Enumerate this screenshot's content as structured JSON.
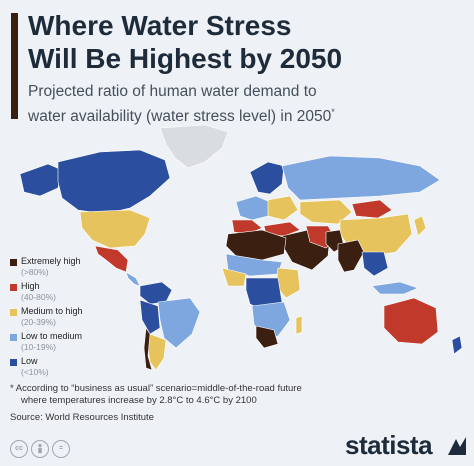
{
  "title_line1": "Where Water Stress",
  "title_line2": "Will Be Highest by 2050",
  "subtitle_line1": "Projected ratio of human water demand to",
  "subtitle_line2": "water availability (water stress level) in 2050",
  "subtitle_marker": "*",
  "legend": [
    {
      "label": "Extremely high",
      "range": "(>80%)",
      "color": "#3b1f10"
    },
    {
      "label": "High",
      "range": "(40-80%)",
      "color": "#c0392b"
    },
    {
      "label": "Medium to high",
      "range": "(20-39%)",
      "color": "#e6c35c"
    },
    {
      "label": "Low to medium",
      "range": "(10-19%)",
      "color": "#7fa7df"
    },
    {
      "label": "Low",
      "range": "(<10%)",
      "color": "#2b4f9e"
    }
  ],
  "footnote_line1": "* According to “business as usual” scenario=middle-of-the-road future",
  "footnote_line2": "where temperatures increase by 2.8°C to 4.6°C by 2100",
  "source": "Source: World Resources Institute",
  "license_icons": [
    "cc-icon",
    "attribution-icon",
    "equals-icon"
  ],
  "brand": "statista",
  "colors": {
    "no_data": "#d9dce0",
    "extremely_high": "#3b1f10",
    "high": "#c0392b",
    "medium_high": "#e6c35c",
    "low_medium": "#7fa7df",
    "low": "#2b4f9e"
  }
}
